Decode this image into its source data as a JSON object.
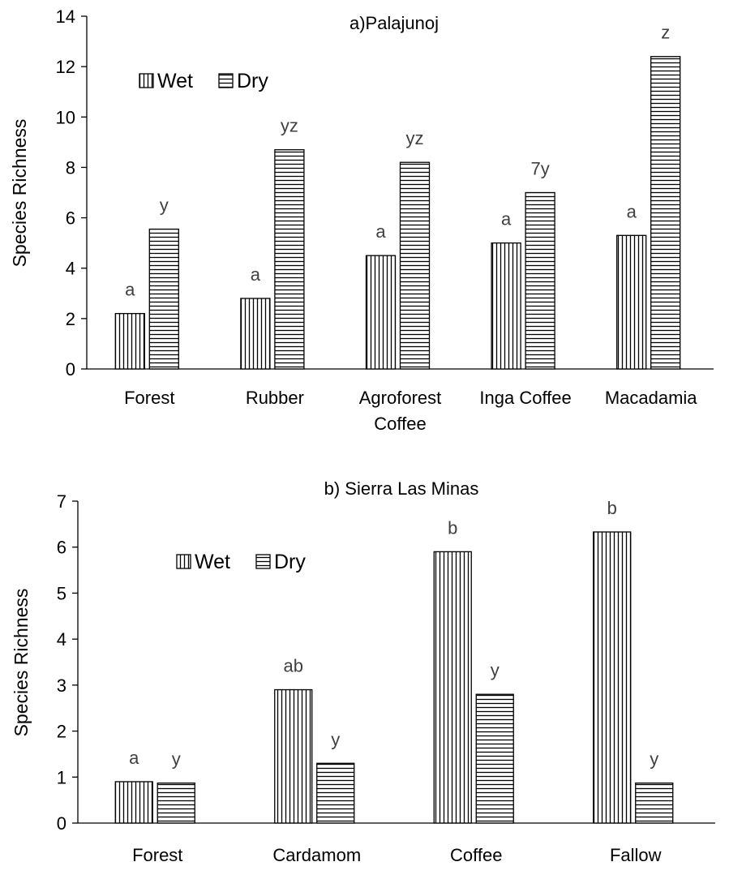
{
  "chart_data": [
    {
      "type": "bar",
      "title": "a)Palajunoj",
      "ylabel": "Species Richness",
      "xlabel": "",
      "ylim": [
        0,
        14
      ],
      "yticks": [
        0,
        2,
        4,
        6,
        8,
        10,
        12,
        14
      ],
      "categories": [
        "Forest",
        "Rubber",
        "Agroforest\nCoffee",
        "Inga Coffee",
        "Macadamia"
      ],
      "legend_position": "top-left",
      "series": [
        {
          "name": "Wet",
          "pattern": "vertical-lines",
          "values": [
            2.2,
            2.8,
            4.5,
            5.0,
            5.3
          ],
          "labels": [
            "a",
            "a",
            "a",
            "a",
            "a"
          ]
        },
        {
          "name": "Dry",
          "pattern": "horizontal-lines",
          "values": [
            5.55,
            8.7,
            8.2,
            7.0,
            12.4
          ],
          "labels": [
            "y",
            "yz",
            "yz",
            "7y",
            "z"
          ]
        }
      ]
    },
    {
      "type": "bar",
      "title": "b) Sierra Las Minas",
      "ylabel": "Species Richness",
      "xlabel": "",
      "ylim": [
        0,
        7
      ],
      "yticks": [
        0,
        1,
        2,
        3,
        4,
        5,
        6,
        7
      ],
      "categories": [
        "Forest",
        "Cardamom",
        "Coffee",
        "Fallow"
      ],
      "legend_position": "top-left",
      "series": [
        {
          "name": "Wet",
          "pattern": "vertical-lines",
          "values": [
            0.9,
            2.9,
            5.9,
            6.33
          ],
          "labels": [
            "a",
            "ab",
            "b",
            "b"
          ]
        },
        {
          "name": "Dry",
          "pattern": "horizontal-lines",
          "values": [
            0.87,
            1.3,
            2.8,
            0.87
          ],
          "labels": [
            "y",
            "y",
            "y",
            "y"
          ]
        }
      ]
    }
  ]
}
